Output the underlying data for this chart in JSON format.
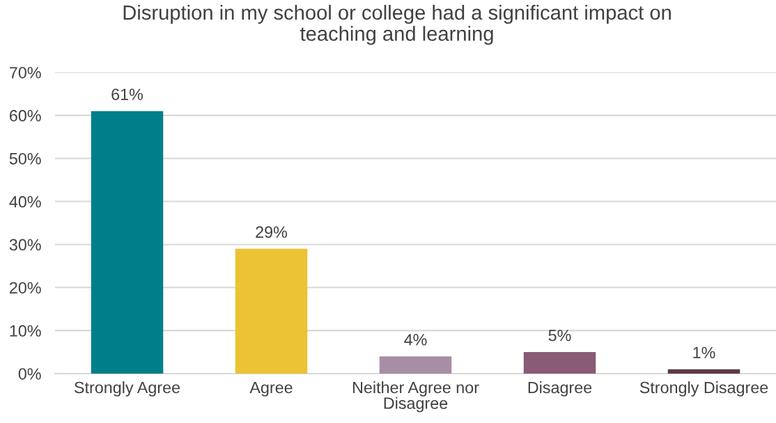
{
  "chart_data": {
    "type": "bar",
    "title": "Disruption in my school or college had a significant impact on teaching and learning",
    "categories": [
      "Strongly Agree",
      "Agree",
      "Neither Agree nor Disagree",
      "Disagree",
      "Strongly Disagree"
    ],
    "values": [
      61,
      29,
      4,
      5,
      1
    ],
    "colors": [
      "#007f8a",
      "#ebc334",
      "#a88ea5",
      "#8a5b75",
      "#5e3a48"
    ],
    "value_labels": [
      "61%",
      "29%",
      "4%",
      "5%",
      "1%"
    ],
    "ylim": [
      0,
      70
    ],
    "yticks": [
      {
        "value": 0,
        "label": "0%"
      },
      {
        "value": 10,
        "label": "10%"
      },
      {
        "value": 20,
        "label": "20%"
      },
      {
        "value": 30,
        "label": "30%"
      },
      {
        "value": 40,
        "label": "40%"
      },
      {
        "value": 50,
        "label": "50%"
      },
      {
        "value": 60,
        "label": "60%"
      },
      {
        "value": 70,
        "label": "70%"
      }
    ],
    "grid": "y"
  }
}
